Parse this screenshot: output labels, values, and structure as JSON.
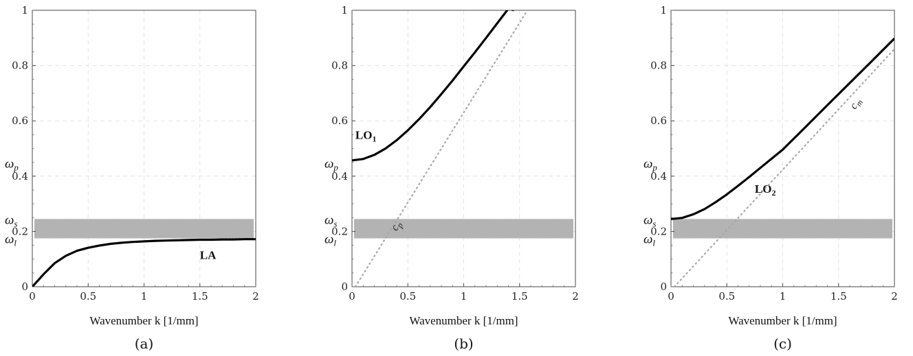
{
  "chart_data": [
    {
      "type": "line",
      "panel_label": "(a)",
      "xlabel": "Wavenumber k [1/mm]",
      "xlim": [
        0,
        2
      ],
      "ylim": [
        0,
        1
      ],
      "xticks": [
        "0",
        "0.5",
        "1",
        "1.5",
        "2"
      ],
      "yticks": [
        "0",
        "0.2",
        "0.4",
        "0.6",
        "0.8",
        "1"
      ],
      "band": {
        "y_low": 0.175,
        "y_high": 0.245,
        "color": "#b3b3b3"
      },
      "band_labels": {
        "upper": "ωs",
        "lower": "ωl"
      },
      "marker_labels": [
        {
          "text": "ωp",
          "y": 0.445
        }
      ],
      "grid": true,
      "series": [
        {
          "name": "LA",
          "style": "solid",
          "x": [
            0,
            0.1,
            0.2,
            0.3,
            0.4,
            0.5,
            0.6,
            0.7,
            0.8,
            0.9,
            1.0,
            1.1,
            1.2,
            1.3,
            1.4,
            1.5,
            1.6,
            1.7,
            1.8,
            1.9,
            2.0
          ],
          "y": [
            0,
            0.045,
            0.085,
            0.112,
            0.13,
            0.141,
            0.149,
            0.155,
            0.159,
            0.162,
            0.164,
            0.166,
            0.167,
            0.168,
            0.169,
            0.17,
            0.17,
            0.171,
            0.171,
            0.172,
            0.172
          ],
          "label_at": {
            "x": 1.5,
            "y": 0.1
          }
        }
      ]
    },
    {
      "type": "line",
      "panel_label": "(b)",
      "xlabel": "Wavenumber k [1/mm]",
      "xlim": [
        0,
        2
      ],
      "ylim": [
        0,
        1
      ],
      "xticks": [
        "0",
        "0.5",
        "1",
        "1.5",
        "2"
      ],
      "yticks": [
        "0",
        "0.2",
        "0.4",
        "0.6",
        "0.8",
        "1"
      ],
      "band": {
        "y_low": 0.175,
        "y_high": 0.245,
        "color": "#b3b3b3"
      },
      "band_labels": {
        "upper": "ωs",
        "lower": "ωl"
      },
      "marker_labels": [
        {
          "text": "ωp",
          "y": 0.445
        }
      ],
      "grid": true,
      "series": [
        {
          "name": "LO",
          "name_sub": "1",
          "style": "solid",
          "x": [
            0,
            0.1,
            0.2,
            0.3,
            0.4,
            0.5,
            0.6,
            0.7,
            0.8,
            0.9,
            1.0,
            1.1,
            1.2,
            1.3,
            1.4,
            1.45
          ],
          "y": [
            0.457,
            0.462,
            0.477,
            0.5,
            0.53,
            0.566,
            0.606,
            0.65,
            0.697,
            0.746,
            0.797,
            0.848,
            0.9,
            0.953,
            1.006,
            1.0
          ],
          "label_at": {
            "x": 0.03,
            "y": 0.535
          }
        },
        {
          "name": "c",
          "name_sub": "p",
          "style": "dotted",
          "color": "#a8a8a8",
          "x": [
            0.03,
            1.57
          ],
          "y": [
            0,
            1
          ],
          "label_at": {
            "x": 0.4,
            "y": 0.2
          },
          "label_rotate": -63
        }
      ]
    },
    {
      "type": "line",
      "panel_label": "(c)",
      "xlabel": "Wavenumber k [1/mm]",
      "xlim": [
        0,
        2
      ],
      "ylim": [
        0,
        1
      ],
      "xticks": [
        "0",
        "0.5",
        "1",
        "1.5",
        "2"
      ],
      "yticks": [
        "0",
        "0.2",
        "0.4",
        "0.6",
        "0.8",
        "1"
      ],
      "band": {
        "y_low": 0.175,
        "y_high": 0.245,
        "color": "#b3b3b3"
      },
      "band_labels": {
        "upper": "ωs",
        "lower": "ωl"
      },
      "marker_labels": [
        {
          "text": "ωp",
          "y": 0.445
        }
      ],
      "grid": true,
      "series": [
        {
          "name": "LO",
          "name_sub": "2",
          "style": "solid",
          "x": [
            0,
            0.1,
            0.2,
            0.3,
            0.4,
            0.5,
            0.6,
            0.7,
            0.8,
            0.9,
            1.0,
            1.2,
            1.4,
            1.6,
            1.8,
            2.0
          ],
          "y": [
            0.245,
            0.249,
            0.262,
            0.281,
            0.306,
            0.334,
            0.365,
            0.397,
            0.43,
            0.463,
            0.496,
            0.576,
            0.657,
            0.737,
            0.817,
            0.898
          ],
          "label_at": {
            "x": 0.75,
            "y": 0.34
          }
        },
        {
          "name": "c",
          "name_sub": "m",
          "style": "dotted",
          "color": "#a8a8a8",
          "x": [
            0.03,
            2.0
          ],
          "y": [
            0,
            0.86
          ],
          "label_at": {
            "x": 1.65,
            "y": 0.64
          },
          "label_rotate": -60
        }
      ]
    }
  ]
}
